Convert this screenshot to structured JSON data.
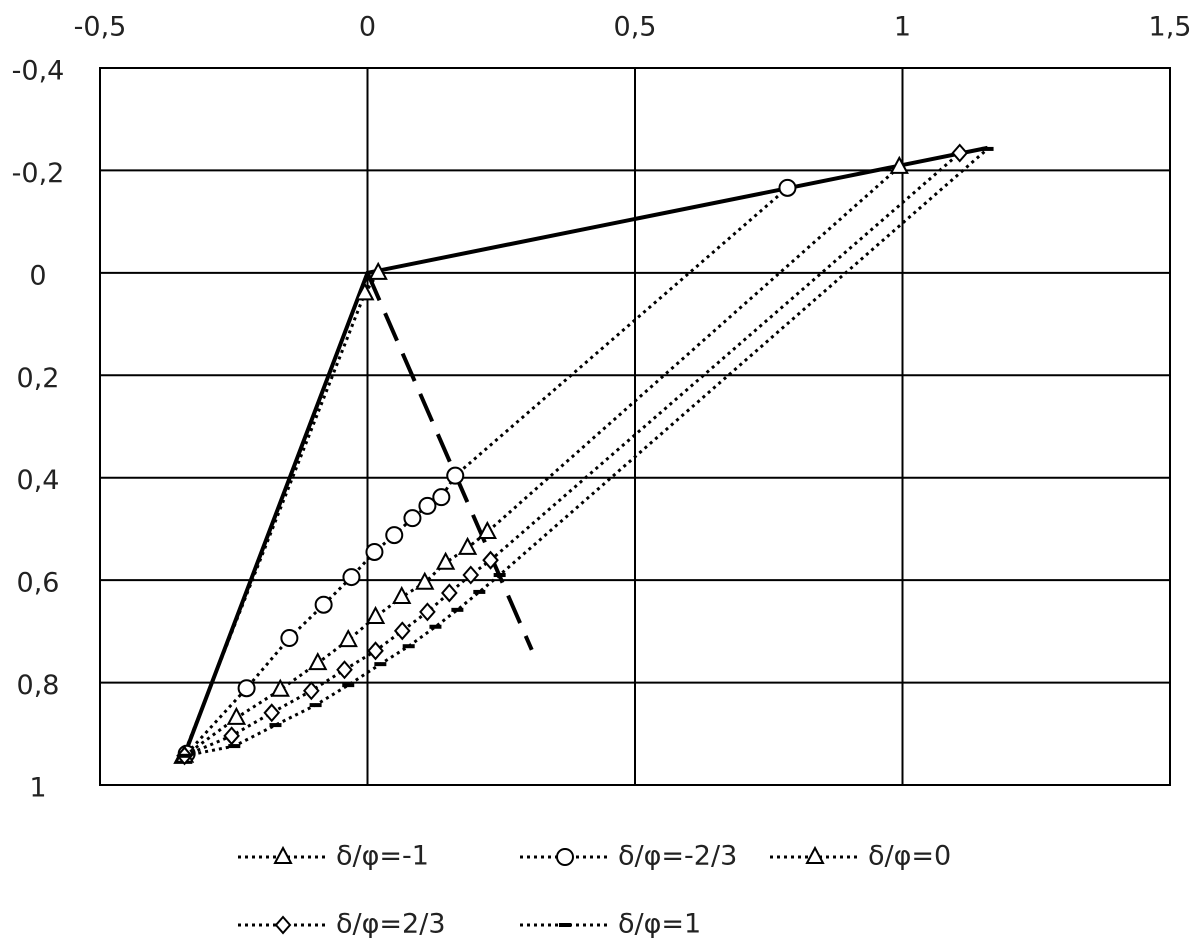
{
  "chart_data": {
    "type": "line",
    "xlim": [
      -0.5,
      1.5
    ],
    "xticks": [
      {
        "value": -0.5,
        "label": "-0,5"
      },
      0,
      {
        "value": 0.5,
        "label": "0,5"
      },
      1,
      {
        "value": 1.5,
        "label": "1,5"
      }
    ],
    "xaxis_position": "top",
    "ylim": [
      -0.4,
      1
    ],
    "y_reversed": true,
    "yticks": [
      {
        "value": -0.4,
        "label": "-0,4"
      },
      {
        "value": -0.2,
        "label": "-0,2"
      },
      0,
      {
        "value": 0.2,
        "label": "0,2"
      },
      {
        "value": 0.4,
        "label": "0,4"
      },
      {
        "value": 0.6,
        "label": "0,6"
      },
      {
        "value": 0.8,
        "label": "0,8"
      },
      1
    ],
    "grid": true,
    "series": [
      {
        "color": "#000000",
        "line": "solid",
        "x": [
          -0.342,
          0,
          1.159
        ],
        "values": [
          0.941,
          0,
          -0.244
        ]
      },
      {
        "color": "#000000",
        "line": "dashed",
        "x": [
          0,
          0.307
        ],
        "values": [
          0,
          0.736
        ]
      },
      {
        "name": "δ/φ=-1",
        "color": "#000000",
        "line": "dotted",
        "marker": "triangle",
        "x": [
          -0.345,
          -0.005,
          0.02
        ],
        "values": [
          0.945,
          0.04,
          0
        ]
      },
      {
        "name": "δ/φ=-2/3",
        "color": "#000000",
        "line": "dotted",
        "marker": "circle",
        "x": [
          -0.338,
          -0.226,
          -0.146,
          -0.082,
          -0.03,
          0.013,
          0.05,
          0.084,
          0.112,
          0.138,
          0.164,
          0.785
        ],
        "values": [
          0.939,
          0.811,
          0.713,
          0.648,
          0.594,
          0.545,
          0.512,
          0.479,
          0.455,
          0.438,
          0.396,
          -0.166
        ]
      },
      {
        "name": "δ/φ=0",
        "color": "#000000",
        "line": "dotted",
        "marker": "triangle",
        "x": [
          -0.342,
          -0.245,
          -0.163,
          -0.093,
          -0.036,
          0.015,
          0.064,
          0.107,
          0.146,
          0.187,
          0.224,
          0.994
        ],
        "values": [
          0.943,
          0.869,
          0.814,
          0.762,
          0.717,
          0.672,
          0.633,
          0.605,
          0.566,
          0.537,
          0.506,
          -0.207
        ]
      },
      {
        "name": "δ/φ=2/3",
        "color": "#000000",
        "line": "dotted",
        "marker": "diamond",
        "x": [
          -0.342,
          -0.254,
          -0.179,
          -0.105,
          -0.043,
          0.015,
          0.065,
          0.112,
          0.153,
          0.193,
          0.23,
          1.107
        ],
        "values": [
          0.943,
          0.904,
          0.859,
          0.816,
          0.775,
          0.738,
          0.699,
          0.662,
          0.625,
          0.59,
          0.561,
          -0.234
        ]
      },
      {
        "name": "δ/φ=1",
        "color": "#000000",
        "line": "dotted",
        "marker": "dash",
        "x": [
          -0.342,
          -0.249,
          -0.172,
          -0.097,
          -0.036,
          0.024,
          0.077,
          0.127,
          0.168,
          0.209,
          0.247,
          1.159
        ],
        "values": [
          0.943,
          0.924,
          0.883,
          0.844,
          0.805,
          0.764,
          0.729,
          0.691,
          0.658,
          0.623,
          0.59,
          -0.242
        ]
      }
    ]
  }
}
